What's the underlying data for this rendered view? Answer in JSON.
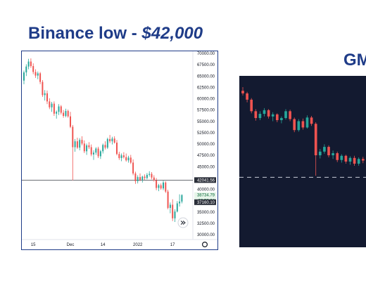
{
  "slide": {
    "title_prefix": "Binance low - ",
    "title_amount": "$42,000",
    "right_title": "GM"
  },
  "colors": {
    "title": "#1f3c88",
    "up": "#26a69a",
    "down": "#ef5350",
    "dark_bg": "#131a30",
    "price_label_bg": "#2a2e39",
    "green_label_bg": "#e7f5ea"
  },
  "icons": {
    "replay": "double-chevron-icon",
    "settings": "gear-icon"
  },
  "chart_data": [
    {
      "type": "candlestick",
      "ylim": [
        30000,
        70000
      ],
      "y_ticks": [
        "70000.00",
        "67500.00",
        "65000.00",
        "62500.00",
        "60000.00",
        "57500.00",
        "55000.00",
        "52500.00",
        "50000.00",
        "47500.00",
        "45000.00",
        "40000.00",
        "35000.00",
        "32500.00",
        "30000.00"
      ],
      "x_tick_labels": [
        "15",
        "Dec",
        "14",
        "2022",
        "17"
      ],
      "x_tick_index": [
        4,
        20,
        34,
        49,
        64
      ],
      "grid": false,
      "price_line": 42041.56,
      "price_labels": [
        {
          "value": 42041.56,
          "text": "42041.56",
          "style": "dark"
        },
        {
          "value": 38734.79,
          "text": "38734.79",
          "style": "green"
        },
        {
          "value": 37500,
          "text": "06:53:24",
          "style": "green"
        },
        {
          "value": 37160.1,
          "text": "37160.10",
          "style": "dark"
        }
      ],
      "candles": [
        [
          64000,
          66200,
          63200,
          65800
        ],
        [
          65800,
          67600,
          65000,
          67100
        ],
        [
          67100,
          68800,
          66500,
          68200
        ],
        [
          68200,
          68900,
          66800,
          67200
        ],
        [
          67200,
          67800,
          65400,
          65900
        ],
        [
          65900,
          66500,
          64600,
          65100
        ],
        [
          65100,
          66000,
          64300,
          65600
        ],
        [
          65600,
          65900,
          63200,
          63700
        ],
        [
          63700,
          64100,
          60400,
          60800
        ],
        [
          60800,
          61900,
          59600,
          61200
        ],
        [
          61200,
          61800,
          58800,
          59400
        ],
        [
          59400,
          60100,
          57700,
          58100
        ],
        [
          58100,
          59300,
          57100,
          58900
        ],
        [
          58900,
          59400,
          56200,
          56700
        ],
        [
          56700,
          57400,
          55600,
          57100
        ],
        [
          57100,
          58800,
          56400,
          58300
        ],
        [
          58300,
          58600,
          56500,
          56900
        ],
        [
          56900,
          57500,
          55800,
          56200
        ],
        [
          56200,
          57800,
          55900,
          57300
        ],
        [
          57300,
          57600,
          55800,
          56100
        ],
        [
          56100,
          57100,
          53500,
          53800
        ],
        [
          53800,
          54200,
          42000,
          49300
        ],
        [
          49300,
          51100,
          48300,
          50600
        ],
        [
          50600,
          51400,
          48900,
          49200
        ],
        [
          49200,
          51300,
          48600,
          50900
        ],
        [
          50900,
          51700,
          49700,
          50100
        ],
        [
          50100,
          50800,
          48000,
          48400
        ],
        [
          48400,
          50100,
          47600,
          49700
        ],
        [
          49700,
          50400,
          48900,
          49300
        ],
        [
          49300,
          49900,
          47300,
          47700
        ],
        [
          47700,
          48600,
          46500,
          48100
        ],
        [
          48100,
          49300,
          47600,
          49000
        ],
        [
          49000,
          49400,
          46900,
          47300
        ],
        [
          47300,
          48700,
          46700,
          48400
        ],
        [
          48400,
          50100,
          47900,
          49800
        ],
        [
          49800,
          50600,
          48800,
          49200
        ],
        [
          49200,
          51400,
          48900,
          51100
        ],
        [
          51100,
          52000,
          50200,
          50600
        ],
        [
          50600,
          51600,
          49900,
          51200
        ],
        [
          51200,
          51700,
          50100,
          50300
        ],
        [
          50300,
          50900,
          47500,
          47800
        ],
        [
          47800,
          48300,
          46500,
          46900
        ],
        [
          46900,
          47900,
          46200,
          47500
        ],
        [
          47500,
          48200,
          46800,
          47100
        ],
        [
          47100,
          47900,
          46100,
          46400
        ],
        [
          46400,
          47400,
          45900,
          47000
        ],
        [
          47000,
          47600,
          45600,
          45900
        ],
        [
          45900,
          46600,
          43100,
          43500
        ],
        [
          43500,
          43900,
          41200,
          41800
        ],
        [
          41800,
          43100,
          41300,
          42700
        ],
        [
          42700,
          43500,
          41800,
          42100
        ],
        [
          42100,
          43000,
          41500,
          42800
        ],
        [
          42800,
          43300,
          42100,
          42500
        ],
        [
          42500,
          43600,
          42200,
          43200
        ],
        [
          43200,
          44000,
          42800,
          43400
        ],
        [
          43400,
          43800,
          42200,
          42600
        ],
        [
          42600,
          43100,
          41700,
          42000
        ],
        [
          42000,
          42500,
          39800,
          40300
        ],
        [
          40300,
          41200,
          39600,
          40900
        ],
        [
          40900,
          41300,
          39900,
          40200
        ],
        [
          40200,
          41900,
          39800,
          41500
        ],
        [
          41500,
          41800,
          39200,
          39500
        ],
        [
          39500,
          39900,
          35600,
          35900
        ],
        [
          35900,
          37100,
          34700,
          36600
        ],
        [
          36600,
          37800,
          33000,
          33600
        ],
        [
          33600,
          35600,
          32800,
          35100
        ],
        [
          35100,
          37400,
          34900,
          36900
        ],
        [
          36900,
          38900,
          36200,
          37300
        ],
        [
          37300,
          38900,
          36900,
          38734.79
        ]
      ]
    },
    {
      "type": "candlestick",
      "ylim": [
        30000,
        60000
      ],
      "grid": false,
      "price_line": 42000,
      "candles": [
        [
          58500,
          59200,
          57600,
          58000
        ],
        [
          58000,
          58300,
          56300,
          56800
        ],
        [
          56800,
          57100,
          54200,
          54600
        ],
        [
          54600,
          55000,
          52800,
          53300
        ],
        [
          53300,
          54600,
          52900,
          54100
        ],
        [
          54100,
          55200,
          53600,
          54800
        ],
        [
          54800,
          55000,
          53200,
          53600
        ],
        [
          53600,
          54400,
          52700,
          54000
        ],
        [
          54000,
          54200,
          52500,
          52900
        ],
        [
          52900,
          53600,
          52300,
          53300
        ],
        [
          53300,
          55000,
          53000,
          54600
        ],
        [
          54600,
          54900,
          52700,
          53100
        ],
        [
          53100,
          53400,
          50600,
          51000
        ],
        [
          51000,
          53100,
          50700,
          52700
        ],
        [
          52700,
          53200,
          51100,
          51500
        ],
        [
          51500,
          53800,
          51300,
          53400
        ],
        [
          53400,
          53700,
          51800,
          52200
        ],
        [
          52200,
          52500,
          42300,
          46200
        ],
        [
          46200,
          47400,
          45600,
          46900
        ],
        [
          46900,
          48300,
          46500,
          47800
        ],
        [
          47800,
          48100,
          45800,
          46200
        ],
        [
          46200,
          47100,
          45500,
          46600
        ],
        [
          46600,
          46900,
          44900,
          45300
        ],
        [
          45300,
          46400,
          44800,
          46100
        ],
        [
          46100,
          46300,
          44600,
          45000
        ],
        [
          45000,
          46000,
          44400,
          45700
        ],
        [
          45700,
          46100,
          44200,
          44600
        ],
        [
          44600,
          45800,
          44200,
          45500
        ],
        [
          45500,
          45900,
          44700,
          45200
        ]
      ]
    }
  ]
}
